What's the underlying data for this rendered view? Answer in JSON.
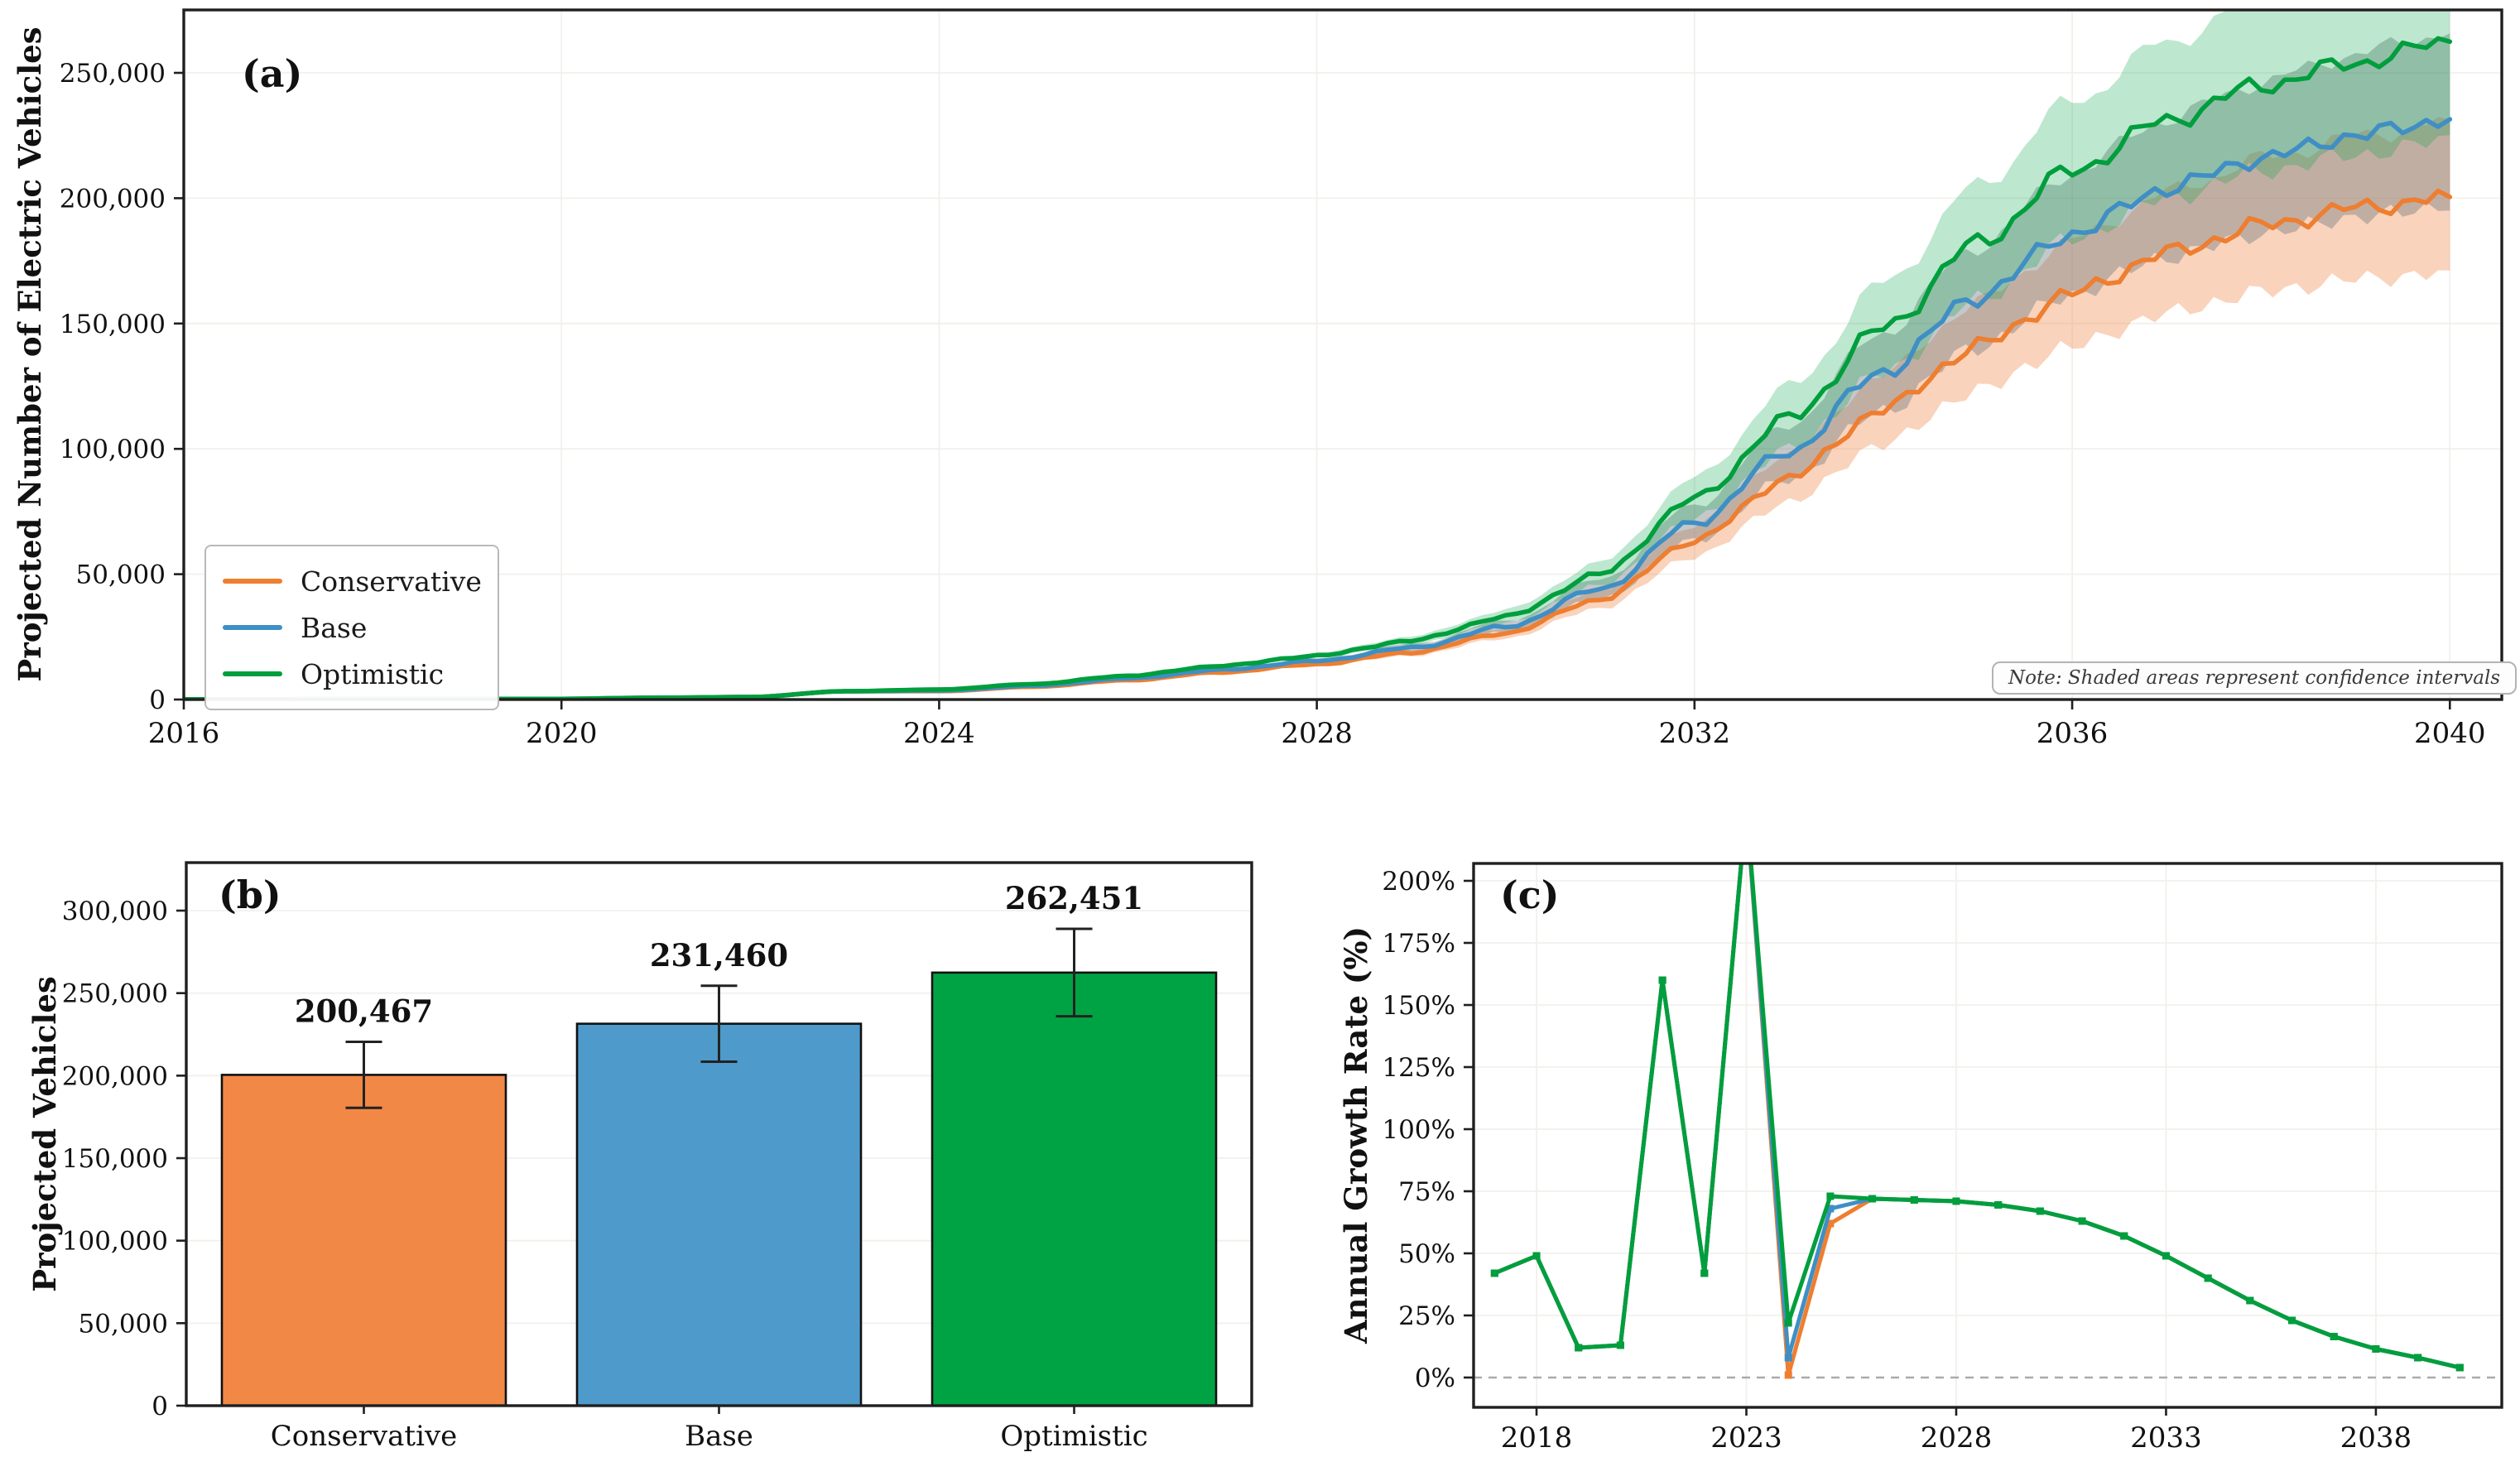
{
  "colors": {
    "conservative": "#EE7E30",
    "base": "#3F8FC5",
    "optimistic": "#009E3D",
    "conservative_fill": "#F28845",
    "base_fill": "#4E9ACB",
    "optimistic_fill": "#00A344",
    "band_conservative": "rgba(243,140,80,0.38)",
    "band_base": "rgba(115,125,128,0.42)",
    "band_optimistic": "rgba(0,163,68,0.26)",
    "error_bar": "#222222",
    "spine": "#1f1f1f",
    "grid": "#f3f0ec",
    "tick_text": "#111111",
    "zero_line": "#aaaaaa"
  },
  "chart_data": [
    {
      "type": "line",
      "panel_label": "(a)",
      "ylabel": "Projected Number of Electric Vehicles",
      "note": "Note: Shaded areas represent confidence intervals",
      "x": [
        2016,
        2017,
        2018,
        2019,
        2020,
        2021,
        2022,
        2023,
        2024,
        2025,
        2026,
        2027,
        2028,
        2029,
        2030,
        2031,
        2032,
        2033,
        2034,
        2035,
        2036,
        2037,
        2038,
        2039,
        2040
      ],
      "series": [
        {
          "name": "Conservative",
          "color_key": "conservative",
          "band_key": "band_conservative",
          "values": [
            100,
            140,
            210,
            240,
            270,
            700,
            1000,
            3300,
            3330,
            5100,
            7700,
            10900,
            14100,
            18800,
            26500,
            40000,
            63500,
            88500,
            116000,
            141000,
            162000,
            178000,
            189000,
            196000,
            200467
          ]
        },
        {
          "name": "Base",
          "color_key": "base",
          "band_key": "band_base",
          "values": [
            100,
            140,
            210,
            240,
            270,
            700,
            1000,
            3300,
            3560,
            5500,
            8400,
            11900,
            15400,
            20600,
            29000,
            44000,
            70500,
            99000,
            131000,
            161000,
            186000,
            204000,
            216000,
            225000,
            231460
          ]
        },
        {
          "name": "Optimistic",
          "color_key": "optimistic",
          "band_key": "band_optimistic",
          "values": [
            100,
            140,
            210,
            240,
            270,
            700,
            1000,
            3300,
            4000,
            6200,
            9500,
            13500,
            17500,
            23500,
            33000,
            50000,
            80000,
            112000,
            148000,
            182000,
            211000,
            231000,
            245000,
            254000,
            262451
          ]
        }
      ],
      "ci_fraction": [
        0,
        0,
        0,
        0,
        0,
        0,
        0,
        0,
        0,
        0.03,
        0.04,
        0.05,
        0.06,
        0.07,
        0.08,
        0.09,
        0.1,
        0.11,
        0.12,
        0.125,
        0.13,
        0.135,
        0.14,
        0.145,
        0.15
      ],
      "xticks": [
        2016,
        2020,
        2024,
        2028,
        2032,
        2036,
        2040
      ],
      "ytick_values": [
        0,
        50000,
        100000,
        150000,
        200000,
        250000
      ],
      "ytick_labels": [
        "0",
        "50,000",
        "100,000",
        "150,000",
        "200,000",
        "250,000"
      ],
      "ylim": [
        0,
        275000
      ],
      "legend_position": "lower left",
      "grid": true
    },
    {
      "type": "bar",
      "panel_label": "(b)",
      "ylabel": "Projected Vehicles",
      "categories": [
        "Conservative",
        "Base",
        "Optimistic"
      ],
      "values": [
        200467,
        231460,
        262451
      ],
      "errors": [
        20000,
        23000,
        26500
      ],
      "value_labels": [
        "200,467",
        "231,460",
        "262,451"
      ],
      "bar_color_keys": [
        "conservative_fill",
        "base_fill",
        "optimistic_fill"
      ],
      "ytick_values": [
        0,
        50000,
        100000,
        150000,
        200000,
        250000,
        300000
      ],
      "ytick_labels": [
        "0",
        "50,000",
        "100,000",
        "150,000",
        "200,000",
        "250,000",
        "300,000"
      ],
      "ylim": [
        0,
        329000
      ],
      "grid": true
    },
    {
      "type": "line",
      "panel_label": "(c)",
      "ylabel": "Annual Growth Rate (%)",
      "x": [
        2017,
        2018,
        2019,
        2020,
        2021,
        2022,
        2023,
        2024,
        2025,
        2026,
        2027,
        2028,
        2029,
        2030,
        2031,
        2032,
        2033,
        2034,
        2035,
        2036,
        2037,
        2038,
        2039,
        2040
      ],
      "series": [
        {
          "name": "Conservative",
          "color_key": "conservative",
          "values": [
            42,
            49,
            12,
            13,
            160,
            42,
            230,
            1,
            62,
            72,
            71.5,
            71,
            69.5,
            67,
            63,
            57,
            49,
            40,
            31,
            23,
            16.5,
            11.5,
            8,
            4
          ]
        },
        {
          "name": "Base",
          "color_key": "base",
          "values": [
            42,
            49,
            12,
            13,
            160,
            42,
            230,
            8,
            68,
            72,
            71.5,
            71,
            69.5,
            67,
            63,
            57,
            49,
            40,
            31,
            23,
            16.5,
            11.5,
            8,
            4
          ]
        },
        {
          "name": "Optimistic",
          "color_key": "optimistic",
          "values": [
            42,
            49,
            12,
            13,
            160,
            42,
            230,
            22,
            73,
            72,
            71.5,
            71,
            69.5,
            67,
            63,
            57,
            49,
            40,
            31,
            23,
            16.5,
            11.5,
            8,
            4
          ]
        }
      ],
      "xticks": [
        2018,
        2023,
        2028,
        2033,
        2038
      ],
      "ytick_values": [
        0,
        25,
        50,
        75,
        100,
        125,
        150,
        175,
        200
      ],
      "ytick_labels": [
        "0%",
        "25%",
        "50%",
        "75%",
        "100%",
        "125%",
        "150%",
        "175%",
        "200%"
      ],
      "ylim": [
        -12,
        207
      ],
      "zero_line": true,
      "marker": "square",
      "grid": true
    }
  ]
}
